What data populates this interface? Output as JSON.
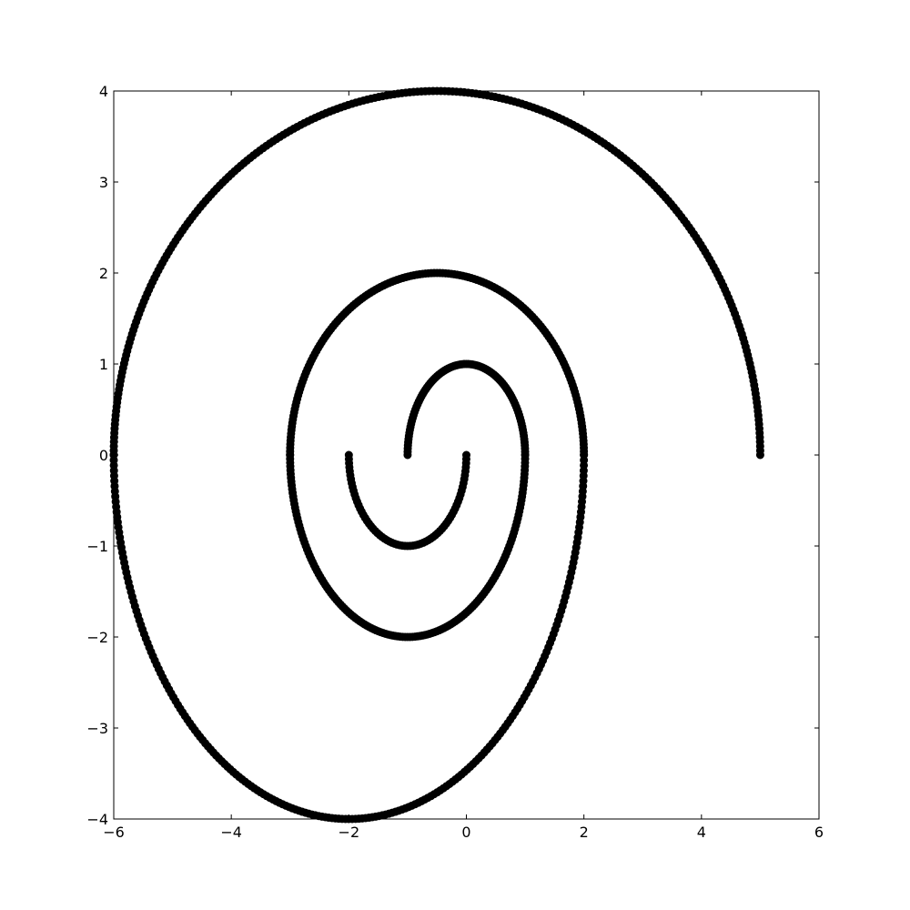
{
  "chart_data": {
    "type": "scatter",
    "title": "",
    "xlabel": "",
    "ylabel": "",
    "xlim": [
      -6,
      6
    ],
    "ylim": [
      -4,
      4
    ],
    "grid": false,
    "legend": false,
    "x_ticks": [
      -6,
      -4,
      -2,
      0,
      2,
      4,
      6
    ],
    "y_ticks": [
      -4,
      -3,
      -2,
      -1,
      0,
      1,
      2,
      3,
      4
    ],
    "x_tick_labels": [
      "−6",
      "−4",
      "−2",
      "0",
      "2",
      "4",
      "6"
    ],
    "y_tick_labels": [
      "−4",
      "−3",
      "−2",
      "−1",
      "0",
      "1",
      "2",
      "3",
      "4"
    ],
    "marker_color": "#000000",
    "series": [
      {
        "curve": "spiral made of consecutive semi-ellipses (point markers)",
        "semi_ellipses": [
          {
            "center_x": 0,
            "x_radius": 1,
            "y_radius": 1,
            "start_deg": 0,
            "end_deg": 180
          },
          {
            "center_x": -1,
            "x_radius": 2,
            "y_radius": 2,
            "start_deg": 180,
            "end_deg": 360
          },
          {
            "center_x": 0,
            "x_radius": 3,
            "y_radius": 2,
            "start_deg": 0,
            "end_deg": 180
          },
          {
            "center_x": 0,
            "x_radius": 2,
            "y_radius": 2,
            "start_deg": 180,
            "end_deg": 360
          },
          {
            "center_x": -2,
            "x_radius": 4,
            "y_radius": 4,
            "start_deg": 0,
            "end_deg": 180
          },
          {
            "center_x": -1,
            "x_radius": 5,
            "y_radius": 4,
            "start_deg": 180,
            "end_deg": 360
          },
          {
            "center_x": -1,
            "x_radius": 2,
            "y_radius": 2,
            "start_deg": 360,
            "end_deg": 360
          },
          {
            "center_x": 1,
            "x_radius": 4,
            "y_radius": 4,
            "start_deg": 0,
            "end_deg": 0
          }
        ],
        "key_points": [
          {
            "x": 0,
            "y": 0
          },
          {
            "x": 1,
            "y": 0
          },
          {
            "x": -1,
            "y": 0
          },
          {
            "x": 0,
            "y": 1
          },
          {
            "x": -1,
            "y": -1
          },
          {
            "x": -3,
            "y": 0
          },
          {
            "x": 1,
            "y": 0
          },
          {
            "x": 0,
            "y": 2
          },
          {
            "x": -1,
            "y": -2
          },
          {
            "x": 2,
            "y": 0
          },
          {
            "x": -2,
            "y": -4
          },
          {
            "x": -6,
            "y": 0
          },
          {
            "x": 1,
            "y": 4
          },
          {
            "x": 5,
            "y": 0
          }
        ]
      }
    ]
  }
}
